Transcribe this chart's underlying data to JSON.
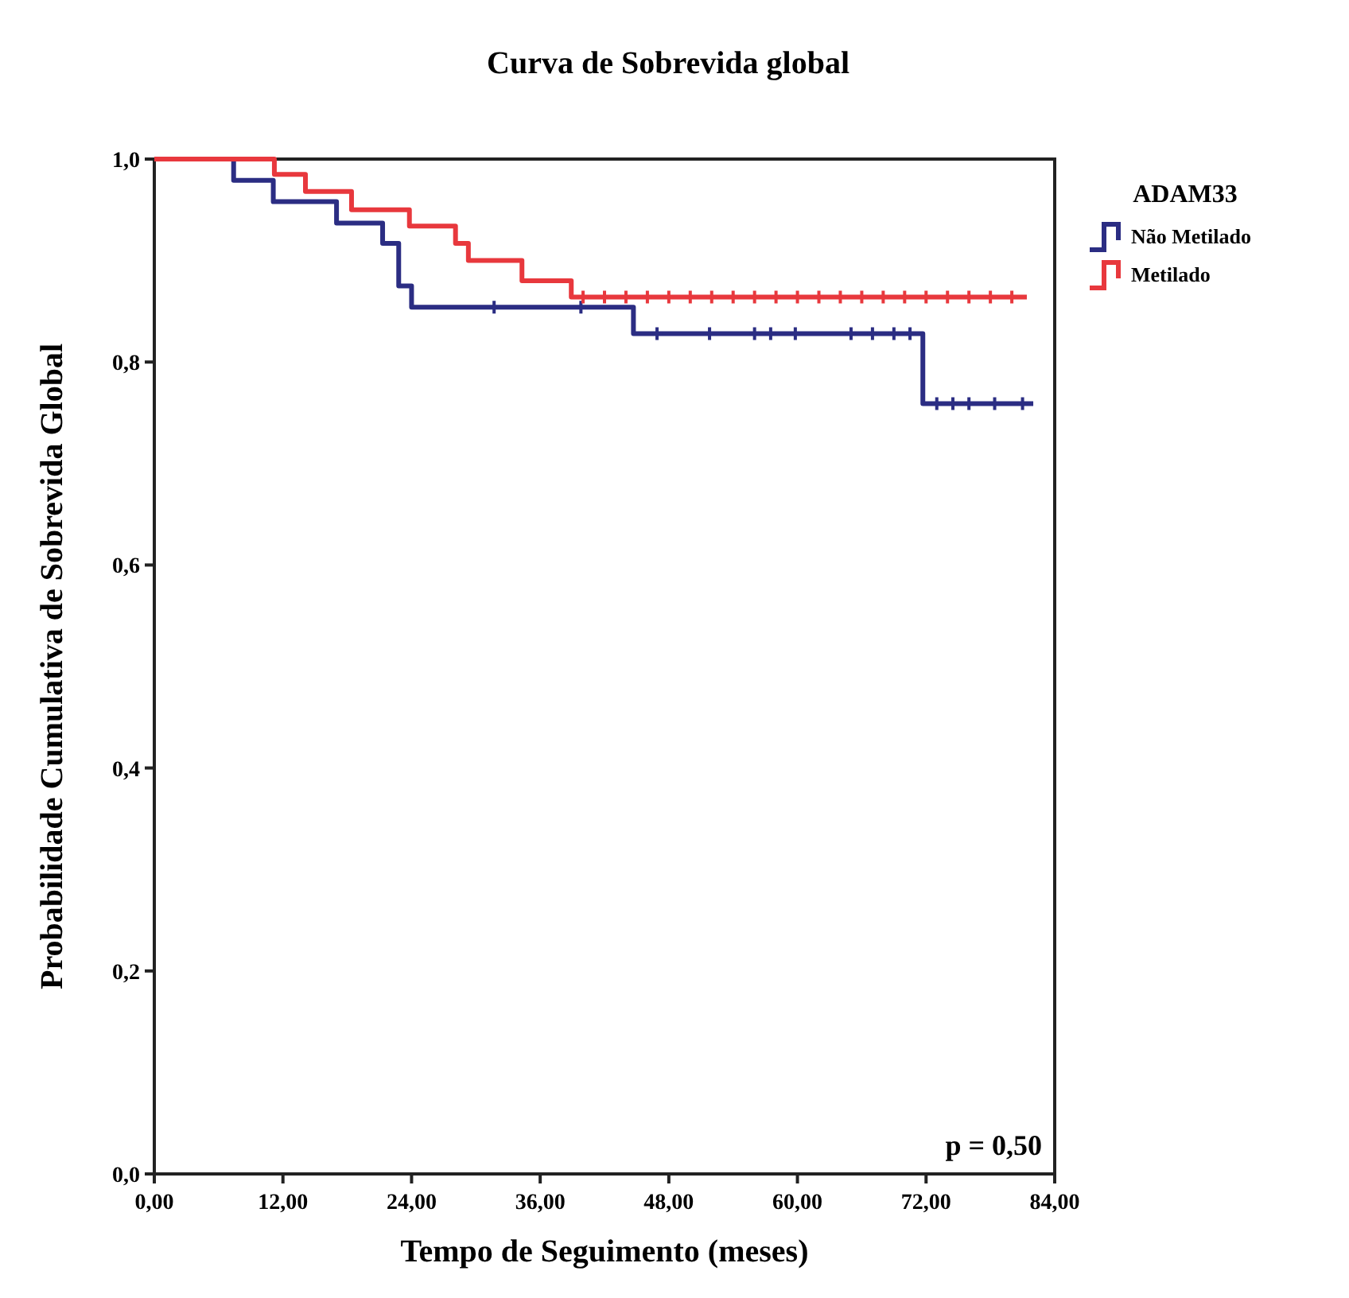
{
  "chart_data": {
    "type": "step",
    "title": "Curva de Sobrevida global",
    "xlabel": "Tempo de Seguimento (meses)",
    "ylabel": "Probabilidade Cumulativa de Sobrevida Global",
    "legend_title": "ADAM33",
    "legend": "top right",
    "grid": false,
    "xlim": [
      0,
      84
    ],
    "xticks": [
      {
        "value": 0,
        "label": "0,00"
      },
      {
        "value": 12,
        "label": "12,00"
      },
      {
        "value": 24,
        "label": "24,00"
      },
      {
        "value": 36,
        "label": "36,00"
      },
      {
        "value": 48,
        "label": "48,00"
      },
      {
        "value": 60,
        "label": "60,00"
      },
      {
        "value": 72,
        "label": "72,00"
      },
      {
        "value": 84,
        "label": "84,00"
      }
    ],
    "ylim": [
      0,
      1
    ],
    "yticks": [
      {
        "value": 0,
        "label": "0,0"
      },
      {
        "value": 0.2,
        "label": "0,2"
      },
      {
        "value": 0.4,
        "label": "0,4"
      },
      {
        "value": 0.6,
        "label": "0,6"
      },
      {
        "value": 0.8,
        "label": "0,8"
      },
      {
        "value": 1,
        "label": "1,0"
      }
    ],
    "annotations": [
      "p = 0,50"
    ],
    "series": [
      {
        "name": "Não Metilado",
        "color": "#2b2d83",
        "x": [
          0,
          7.4,
          11.1,
          17,
          21.3,
          22.8,
          24,
          44.7,
          71.7,
          82
        ],
        "values": [
          1,
          0.979,
          0.958,
          0.937,
          0.917,
          0.875,
          0.854,
          0.828,
          0.759,
          0.759
        ]
      },
      {
        "name": "Metilado",
        "color": "#e8383d",
        "x": [
          0,
          11.2,
          14.1,
          18.4,
          23.8,
          28.1,
          29.3,
          34.3,
          38.9,
          81.4
        ],
        "values": [
          1,
          0.985,
          0.968,
          0.95,
          0.934,
          0.917,
          0.9,
          0.88,
          0.864,
          0.864
        ]
      },
      {
        "color": "#2b2d83",
        "type": "scatter",
        "marker": "cross",
        "x": [
          31.7,
          39.8,
          46.9,
          51.8,
          56,
          57.5,
          59.8,
          65,
          67,
          69,
          70.5,
          73,
          74.5,
          76,
          78.4,
          81
        ],
        "values": [
          0.854,
          0.854,
          0.828,
          0.828,
          0.828,
          0.828,
          0.828,
          0.828,
          0.828,
          0.828,
          0.828,
          0.759,
          0.759,
          0.759,
          0.759,
          0.759
        ]
      },
      {
        "color": "#e8383d",
        "type": "scatter",
        "marker": "cross",
        "x": [
          40,
          42,
          44,
          46,
          48,
          50,
          52,
          54,
          56,
          58,
          60,
          62,
          64,
          66,
          68,
          70,
          72,
          74,
          76,
          78,
          80
        ],
        "values": [
          0.864,
          0.864,
          0.864,
          0.864,
          0.864,
          0.864,
          0.864,
          0.864,
          0.864,
          0.864,
          0.864,
          0.864,
          0.864,
          0.864,
          0.864,
          0.864,
          0.864,
          0.864,
          0.864,
          0.864,
          0.864
        ]
      }
    ]
  }
}
